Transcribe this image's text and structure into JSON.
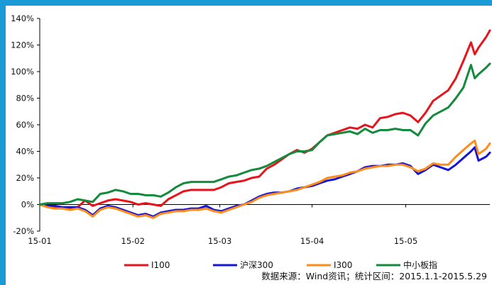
{
  "chart_data": {
    "type": "line",
    "title": "",
    "xlabel": "",
    "ylabel": "",
    "ylim": [
      -20,
      140
    ],
    "y_ticks": [
      -20,
      0,
      20,
      40,
      60,
      80,
      100,
      120,
      140
    ],
    "y_tick_labels": [
      "-20%",
      "0%",
      "20%",
      "40%",
      "60%",
      "80%",
      "100%",
      "120%",
      "140%"
    ],
    "x_tick_labels": [
      "15-01",
      "15-02",
      "15-03",
      "15-04",
      "15-05"
    ],
    "grid": false,
    "legend_position": "bottom",
    "series": [
      {
        "name": "I100",
        "color": "#e8141b",
        "points": [
          [
            0,
            0
          ],
          [
            2,
            -1
          ],
          [
            4,
            -2
          ],
          [
            6,
            -2
          ],
          [
            8,
            -3
          ],
          [
            10,
            -2
          ],
          [
            12,
            3
          ],
          [
            14,
            -1
          ],
          [
            16,
            1
          ],
          [
            18,
            3
          ],
          [
            20,
            4
          ],
          [
            22,
            3
          ],
          [
            24,
            2
          ],
          [
            26,
            0
          ],
          [
            28,
            1
          ],
          [
            30,
            0
          ],
          [
            32,
            -1
          ],
          [
            34,
            4
          ],
          [
            36,
            7
          ],
          [
            38,
            10
          ],
          [
            40,
            11
          ],
          [
            42,
            11
          ],
          [
            44,
            11
          ],
          [
            46,
            11
          ],
          [
            48,
            13
          ],
          [
            50,
            16
          ],
          [
            52,
            17
          ],
          [
            54,
            18
          ],
          [
            56,
            20
          ],
          [
            58,
            21
          ],
          [
            60,
            27
          ],
          [
            62,
            30
          ],
          [
            64,
            34
          ],
          [
            66,
            38
          ],
          [
            68,
            41
          ],
          [
            70,
            39
          ],
          [
            72,
            42
          ],
          [
            74,
            47
          ],
          [
            76,
            52
          ],
          [
            78,
            54
          ],
          [
            80,
            56
          ],
          [
            82,
            58
          ],
          [
            84,
            57
          ],
          [
            86,
            60
          ],
          [
            88,
            58
          ],
          [
            90,
            65
          ],
          [
            92,
            66
          ],
          [
            94,
            68
          ],
          [
            96,
            69
          ],
          [
            98,
            67
          ],
          [
            100,
            62
          ],
          [
            102,
            69
          ],
          [
            104,
            78
          ],
          [
            106,
            82
          ],
          [
            108,
            86
          ],
          [
            110,
            95
          ],
          [
            112,
            108
          ],
          [
            114,
            122
          ],
          [
            115,
            113
          ],
          [
            116,
            118
          ],
          [
            118,
            126
          ],
          [
            119,
            131
          ]
        ]
      },
      {
        "name": "沪深300",
        "color": "#1515d6",
        "points": [
          [
            0,
            0
          ],
          [
            2,
            -1
          ],
          [
            4,
            -1
          ],
          [
            6,
            -2
          ],
          [
            8,
            -2
          ],
          [
            10,
            -2
          ],
          [
            12,
            -4
          ],
          [
            14,
            -8
          ],
          [
            16,
            -3
          ],
          [
            18,
            -1
          ],
          [
            20,
            -2
          ],
          [
            22,
            -4
          ],
          [
            24,
            -6
          ],
          [
            26,
            -8
          ],
          [
            28,
            -7
          ],
          [
            30,
            -9
          ],
          [
            32,
            -6
          ],
          [
            34,
            -5
          ],
          [
            36,
            -4
          ],
          [
            38,
            -4
          ],
          [
            40,
            -3
          ],
          [
            42,
            -3
          ],
          [
            44,
            -1
          ],
          [
            46,
            -4
          ],
          [
            48,
            -5
          ],
          [
            50,
            -3
          ],
          [
            52,
            -1
          ],
          [
            54,
            0
          ],
          [
            56,
            3
          ],
          [
            58,
            6
          ],
          [
            60,
            8
          ],
          [
            62,
            9
          ],
          [
            64,
            9
          ],
          [
            66,
            10
          ],
          [
            68,
            12
          ],
          [
            70,
            13
          ],
          [
            72,
            14
          ],
          [
            74,
            16
          ],
          [
            76,
            18
          ],
          [
            78,
            19
          ],
          [
            80,
            21
          ],
          [
            82,
            23
          ],
          [
            84,
            25
          ],
          [
            86,
            28
          ],
          [
            88,
            29
          ],
          [
            90,
            29
          ],
          [
            92,
            30
          ],
          [
            94,
            30
          ],
          [
            96,
            31
          ],
          [
            98,
            29
          ],
          [
            100,
            23
          ],
          [
            102,
            26
          ],
          [
            104,
            30
          ],
          [
            106,
            28
          ],
          [
            108,
            26
          ],
          [
            110,
            30
          ],
          [
            112,
            35
          ],
          [
            114,
            40
          ],
          [
            115,
            43
          ],
          [
            116,
            33
          ],
          [
            118,
            36
          ],
          [
            119,
            39
          ]
        ]
      },
      {
        "name": "I300",
        "color": "#ff8c1a",
        "points": [
          [
            0,
            0
          ],
          [
            2,
            -2
          ],
          [
            4,
            -3
          ],
          [
            6,
            -3
          ],
          [
            8,
            -4
          ],
          [
            10,
            -3
          ],
          [
            12,
            -5
          ],
          [
            14,
            -9
          ],
          [
            16,
            -4
          ],
          [
            18,
            -2
          ],
          [
            20,
            -3
          ],
          [
            22,
            -5
          ],
          [
            24,
            -7
          ],
          [
            26,
            -9
          ],
          [
            28,
            -8
          ],
          [
            30,
            -10
          ],
          [
            32,
            -7
          ],
          [
            34,
            -6
          ],
          [
            36,
            -5
          ],
          [
            38,
            -5
          ],
          [
            40,
            -4
          ],
          [
            42,
            -4
          ],
          [
            44,
            -3
          ],
          [
            46,
            -5
          ],
          [
            48,
            -6
          ],
          [
            50,
            -4
          ],
          [
            52,
            -2
          ],
          [
            54,
            0
          ],
          [
            56,
            2
          ],
          [
            58,
            5
          ],
          [
            60,
            7
          ],
          [
            62,
            8
          ],
          [
            64,
            9
          ],
          [
            66,
            10
          ],
          [
            68,
            11
          ],
          [
            70,
            13
          ],
          [
            72,
            15
          ],
          [
            74,
            17
          ],
          [
            76,
            20
          ],
          [
            78,
            21
          ],
          [
            80,
            22
          ],
          [
            82,
            24
          ],
          [
            84,
            25
          ],
          [
            86,
            27
          ],
          [
            88,
            28
          ],
          [
            90,
            29
          ],
          [
            92,
            29
          ],
          [
            94,
            30
          ],
          [
            96,
            30
          ],
          [
            98,
            28
          ],
          [
            100,
            25
          ],
          [
            102,
            27
          ],
          [
            104,
            31
          ],
          [
            106,
            30
          ],
          [
            108,
            30
          ],
          [
            110,
            36
          ],
          [
            112,
            41
          ],
          [
            114,
            46
          ],
          [
            115,
            48
          ],
          [
            116,
            38
          ],
          [
            118,
            42
          ],
          [
            119,
            46
          ]
        ]
      },
      {
        "name": "中小板指",
        "color": "#138a3c",
        "points": [
          [
            0,
            0
          ],
          [
            2,
            1
          ],
          [
            4,
            1
          ],
          [
            6,
            1
          ],
          [
            8,
            2
          ],
          [
            10,
            4
          ],
          [
            12,
            3
          ],
          [
            14,
            2
          ],
          [
            16,
            8
          ],
          [
            18,
            9
          ],
          [
            20,
            11
          ],
          [
            22,
            10
          ],
          [
            24,
            8
          ],
          [
            26,
            8
          ],
          [
            28,
            7
          ],
          [
            30,
            7
          ],
          [
            32,
            6
          ],
          [
            34,
            9
          ],
          [
            36,
            13
          ],
          [
            38,
            16
          ],
          [
            40,
            17
          ],
          [
            42,
            17
          ],
          [
            44,
            17
          ],
          [
            46,
            17
          ],
          [
            48,
            19
          ],
          [
            50,
            21
          ],
          [
            52,
            22
          ],
          [
            54,
            24
          ],
          [
            56,
            26
          ],
          [
            58,
            27
          ],
          [
            60,
            29
          ],
          [
            62,
            32
          ],
          [
            64,
            35
          ],
          [
            66,
            38
          ],
          [
            68,
            40
          ],
          [
            70,
            40
          ],
          [
            72,
            41
          ],
          [
            74,
            47
          ],
          [
            76,
            52
          ],
          [
            78,
            53
          ],
          [
            80,
            54
          ],
          [
            82,
            55
          ],
          [
            84,
            53
          ],
          [
            86,
            57
          ],
          [
            88,
            54
          ],
          [
            90,
            56
          ],
          [
            92,
            56
          ],
          [
            94,
            57
          ],
          [
            96,
            56
          ],
          [
            98,
            56
          ],
          [
            100,
            52
          ],
          [
            102,
            61
          ],
          [
            104,
            67
          ],
          [
            106,
            70
          ],
          [
            108,
            73
          ],
          [
            110,
            80
          ],
          [
            112,
            88
          ],
          [
            114,
            105
          ],
          [
            115,
            95
          ],
          [
            116,
            98
          ],
          [
            118,
            103
          ],
          [
            119,
            106
          ]
        ]
      }
    ]
  },
  "source_note": "数据来源：Wind资讯；统计区间：2015.1.1-2015.5.29"
}
